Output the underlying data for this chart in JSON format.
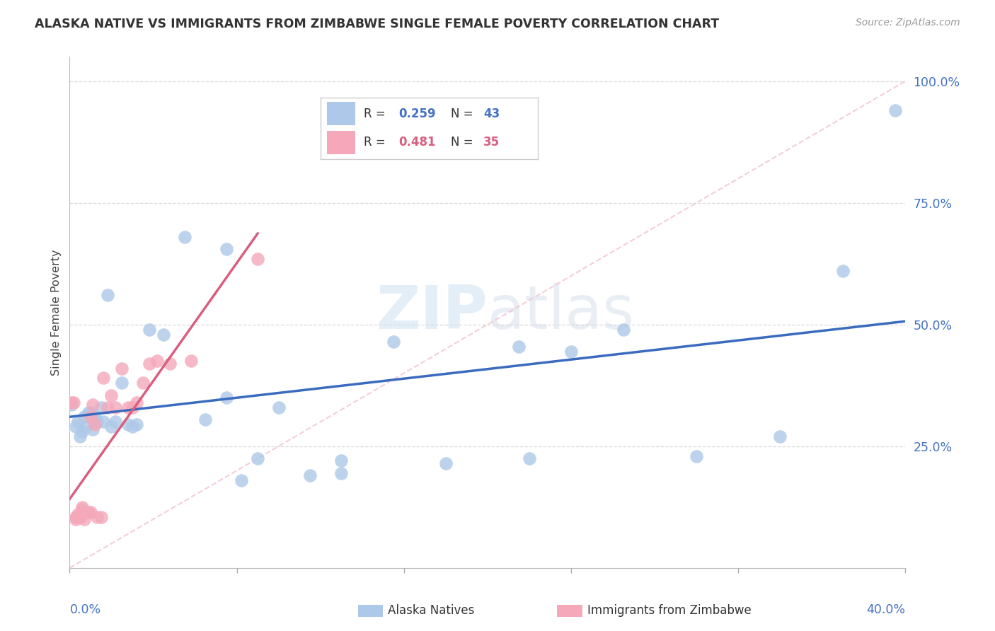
{
  "title": "ALASKA NATIVE VS IMMIGRANTS FROM ZIMBABWE SINGLE FEMALE POVERTY CORRELATION CHART",
  "source": "Source: ZipAtlas.com",
  "ylabel": "Single Female Poverty",
  "xlim": [
    0.0,
    0.4
  ],
  "ylim": [
    0.0,
    1.05
  ],
  "watermark": "ZIPatlas",
  "blue_color": "#adc8e8",
  "pink_color": "#f4a8ba",
  "blue_line_color": "#3a6bbf",
  "pink_line_color": "#d95f7f",
  "diag_line_color": "#f0b0be",
  "background_color": "#ffffff",
  "grid_color": "#d8d8d8",
  "alaska_x": [
    0.001,
    0.003,
    0.004,
    0.005,
    0.006,
    0.007,
    0.008,
    0.009,
    0.01,
    0.011,
    0.012,
    0.013,
    0.015,
    0.016,
    0.018,
    0.02,
    0.022,
    0.025,
    0.028,
    0.03,
    0.032,
    0.038,
    0.045,
    0.055,
    0.065,
    0.075,
    0.082,
    0.09,
    0.1,
    0.115,
    0.13,
    0.155,
    0.18,
    0.215,
    0.24,
    0.265,
    0.3,
    0.34,
    0.37,
    0.395,
    0.22,
    0.13,
    0.075
  ],
  "alaska_y": [
    0.335,
    0.29,
    0.3,
    0.27,
    0.28,
    0.31,
    0.29,
    0.32,
    0.32,
    0.285,
    0.31,
    0.3,
    0.33,
    0.3,
    0.56,
    0.29,
    0.3,
    0.38,
    0.295,
    0.29,
    0.295,
    0.49,
    0.48,
    0.68,
    0.305,
    0.35,
    0.18,
    0.225,
    0.33,
    0.19,
    0.22,
    0.465,
    0.215,
    0.455,
    0.445,
    0.49,
    0.23,
    0.27,
    0.61,
    0.94,
    0.225,
    0.195,
    0.655
  ],
  "zimbabwe_x": [
    0.001,
    0.002,
    0.003,
    0.003,
    0.004,
    0.004,
    0.005,
    0.005,
    0.006,
    0.006,
    0.007,
    0.007,
    0.008,
    0.008,
    0.009,
    0.01,
    0.01,
    0.011,
    0.012,
    0.013,
    0.015,
    0.016,
    0.018,
    0.02,
    0.022,
    0.025,
    0.028,
    0.03,
    0.032,
    0.035,
    0.038,
    0.042,
    0.048,
    0.058,
    0.09
  ],
  "zimbabwe_y": [
    0.34,
    0.34,
    0.1,
    0.105,
    0.105,
    0.11,
    0.105,
    0.105,
    0.125,
    0.12,
    0.1,
    0.115,
    0.115,
    0.115,
    0.115,
    0.115,
    0.31,
    0.335,
    0.295,
    0.105,
    0.105,
    0.39,
    0.33,
    0.355,
    0.33,
    0.41,
    0.33,
    0.33,
    0.34,
    0.38,
    0.42,
    0.425,
    0.42,
    0.425,
    0.635
  ]
}
